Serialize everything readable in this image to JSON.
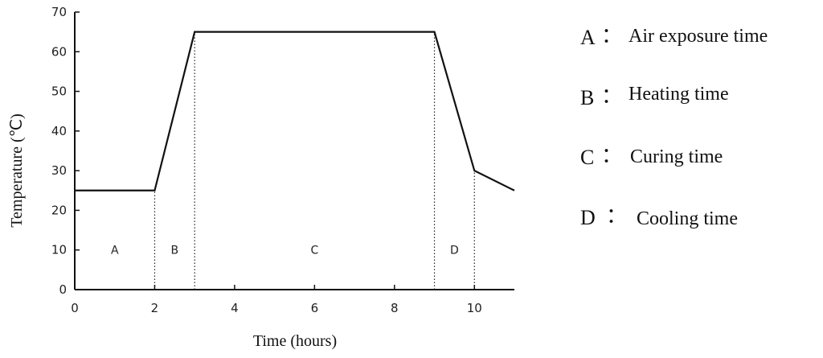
{
  "chart_data": {
    "type": "line",
    "xlabel": "Time (hours)",
    "ylabel": "Temperature (℃)",
    "xlim": [
      0,
      11
    ],
    "ylim": [
      0,
      70
    ],
    "x_ticks": [
      0,
      2,
      4,
      6,
      8,
      10
    ],
    "y_ticks": [
      0,
      10,
      20,
      30,
      40,
      50,
      60,
      70
    ],
    "series": [
      {
        "x": [
          0,
          2,
          3,
          9,
          10,
          11
        ],
        "y": [
          25,
          25,
          65,
          65,
          30,
          25
        ]
      }
    ],
    "phase_boundaries": [
      2,
      3,
      9,
      10
    ],
    "phases": [
      {
        "label": "A",
        "x_start": 0,
        "x_end": 2
      },
      {
        "label": "B",
        "x_start": 2,
        "x_end": 3
      },
      {
        "label": "C",
        "x_start": 3,
        "x_end": 9
      },
      {
        "label": "D",
        "x_start": 9,
        "x_end": 10
      }
    ],
    "grid": false,
    "legend_position": "right"
  },
  "legend": [
    {
      "key": "A",
      "sep": "：",
      "text": "Air exposure time"
    },
    {
      "key": "B",
      "sep": "：",
      "text": "Heating time"
    },
    {
      "key": "C",
      "sep": "：",
      "text": "Curing time"
    },
    {
      "key": "D",
      "sep": "：",
      "text": "Cooling time"
    }
  ]
}
